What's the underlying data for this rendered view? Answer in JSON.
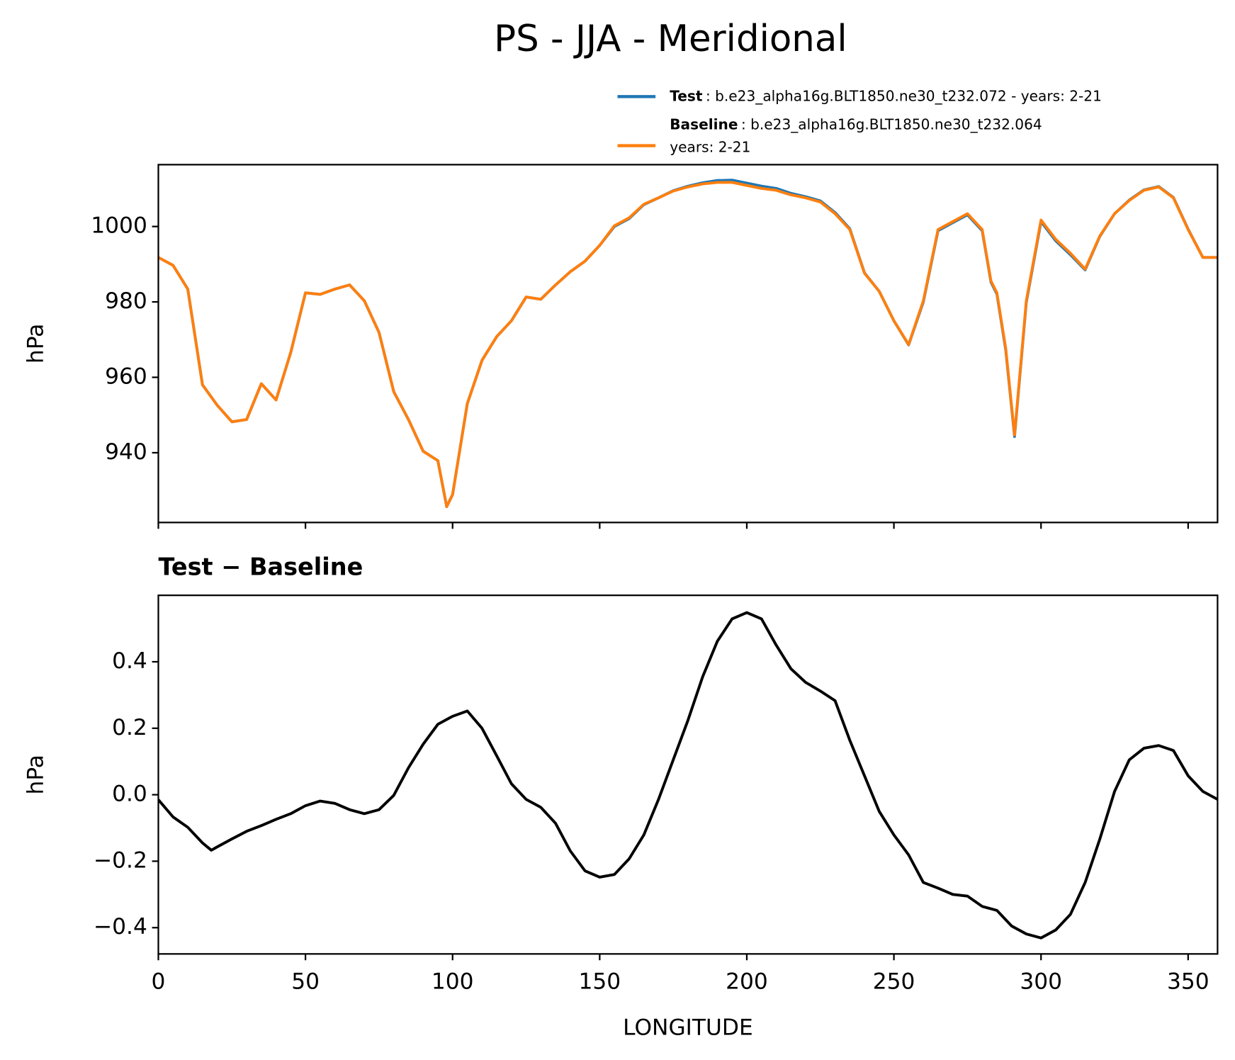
{
  "title": "PS - JJA - Meridional",
  "chart_data": [
    {
      "type": "line",
      "ylabel": "hPa",
      "xlim": [
        0,
        360
      ],
      "xticks": [
        0,
        50,
        100,
        150,
        200,
        250,
        300,
        350
      ],
      "xtick_labels": false,
      "ylim": [
        921.5,
        1016.4
      ],
      "yticks": [
        940,
        960,
        980,
        1000
      ],
      "x": [
        0,
        5,
        10,
        15,
        20,
        25,
        30,
        35,
        40,
        45,
        50,
        55,
        60,
        65,
        70,
        75,
        80,
        85,
        90,
        95,
        98,
        100,
        105,
        110,
        115,
        120,
        125,
        130,
        135,
        140,
        145,
        150,
        155,
        160,
        165,
        170,
        175,
        180,
        185,
        190,
        195,
        200,
        205,
        210,
        215,
        220,
        225,
        230,
        235,
        240,
        245,
        250,
        255,
        260,
        265,
        270,
        275,
        280,
        283,
        285,
        288,
        291,
        295,
        300,
        305,
        310,
        315,
        320,
        325,
        330,
        335,
        340,
        345,
        350,
        355,
        360
      ],
      "series": [
        {
          "name": "Test",
          "description": [
            ": b.e23_alpha16g.BLT1850.ne30_t232.072 - years: 2-21"
          ],
          "color": "#1f77b4",
          "values": [
            991.8,
            989.7,
            983.4,
            958,
            952.6,
            948.2,
            948.8,
            958.3,
            954,
            966.6,
            982.4,
            982,
            983.4,
            984.5,
            980.3,
            971.9,
            956.2,
            948.8,
            940.4,
            937.9,
            925.7,
            928.9,
            953,
            964.5,
            970.8,
            975,
            981.3,
            980.7,
            984.5,
            988,
            990.8,
            995,
            1000,
            1002.1,
            1005.8,
            1007.6,
            1009.5,
            1010.7,
            1011.6,
            1012.2,
            1012.3,
            1011.5,
            1010.7,
            1010.1,
            1008.8,
            1007.9,
            1006.8,
            1003.7,
            999.4,
            987.7,
            982.8,
            975,
            968.6,
            980,
            998.9,
            1001,
            1003.1,
            998.9,
            985.2,
            982.1,
            967.3,
            944.3,
            979.9,
            1001.3,
            996.2,
            992.5,
            988.5,
            997.4,
            1003.4,
            1007,
            1009.7,
            1010.6,
            1007.7,
            999.3,
            991.8,
            991.8
          ]
        },
        {
          "name": "Baseline",
          "description": [
            ": b.e23_alpha16g.BLT1850.ne30_t232.064",
            "years: 2-21"
          ],
          "color": "#ff7f0e",
          "values": [
            991.8,
            989.7,
            983.4,
            958,
            952.6,
            948.2,
            948.8,
            958.3,
            954,
            966.6,
            982.4,
            982,
            983.4,
            984.5,
            980.3,
            971.9,
            956.2,
            948.8,
            940.4,
            937.9,
            925.7,
            928.9,
            953,
            964.5,
            970.8,
            975,
            981.3,
            980.7,
            984.5,
            988,
            990.8,
            995,
            1000.2,
            1002.3,
            1005.9,
            1007.6,
            1009.4,
            1010.5,
            1011.3,
            1011.7,
            1011.7,
            1010.9,
            1010.1,
            1009.6,
            1008.4,
            1007.6,
            1006.5,
            1003.4,
            999.2,
            987.6,
            982.8,
            975,
            968.7,
            980.3,
            999.2,
            1001.3,
            1003.4,
            999.2,
            985.5,
            982.4,
            967.7,
            944.7,
            980.3,
            1001.7,
            996.6,
            992.9,
            988.7,
            997.5,
            1003.4,
            1006.9,
            1009.6,
            1010.5,
            1007.6,
            999.2,
            991.8,
            991.8
          ]
        }
      ]
    },
    {
      "type": "line",
      "title": "Test − Baseline",
      "ylabel": "hPa",
      "xlabel": "LONGITUDE",
      "xlim": [
        0,
        360
      ],
      "xticks": [
        0,
        50,
        100,
        150,
        200,
        250,
        300,
        350
      ],
      "ylim": [
        -0.479,
        0.6
      ],
      "yticks": [
        {
          "value": -0.4,
          "label": "−0.4"
        },
        {
          "value": -0.2,
          "label": "−0.2"
        },
        {
          "value": 0,
          "label": "0.0"
        },
        0.2,
        0.4
      ],
      "x": [
        0,
        5,
        10,
        15,
        18,
        20,
        25,
        30,
        35,
        40,
        45,
        50,
        55,
        60,
        65,
        70,
        75,
        80,
        85,
        90,
        95,
        100,
        105,
        110,
        115,
        120,
        125,
        130,
        135,
        140,
        145,
        150,
        155,
        160,
        165,
        170,
        175,
        180,
        185,
        190,
        195,
        200,
        205,
        210,
        215,
        220,
        225,
        230,
        235,
        240,
        245,
        250,
        255,
        260,
        265,
        270,
        275,
        280,
        285,
        290,
        295,
        300,
        305,
        310,
        315,
        320,
        325,
        330,
        335,
        340,
        345,
        350,
        355,
        360
      ],
      "series": [
        {
          "name": "Test − Baseline",
          "color": "#000000",
          "values": [
            -0.015,
            -0.067,
            -0.098,
            -0.145,
            -0.167,
            -0.157,
            -0.133,
            -0.11,
            -0.093,
            -0.074,
            -0.057,
            -0.033,
            -0.019,
            -0.026,
            -0.045,
            -0.057,
            -0.045,
            -0.002,
            0.081,
            0.152,
            0.212,
            0.236,
            0.252,
            0.2,
            0.117,
            0.033,
            -0.014,
            -0.038,
            -0.086,
            -0.169,
            -0.229,
            -0.248,
            -0.24,
            -0.193,
            -0.121,
            -0.014,
            0.105,
            0.224,
            0.355,
            0.462,
            0.529,
            0.548,
            0.529,
            0.45,
            0.379,
            0.338,
            0.312,
            0.283,
            0.164,
            0.057,
            -0.05,
            -0.121,
            -0.181,
            -0.264,
            -0.281,
            -0.3,
            -0.305,
            -0.336,
            -0.348,
            -0.395,
            -0.419,
            -0.431,
            -0.407,
            -0.36,
            -0.264,
            -0.133,
            0.01,
            0.105,
            0.14,
            0.148,
            0.133,
            0.057,
            0.01,
            -0.014
          ]
        }
      ]
    }
  ]
}
